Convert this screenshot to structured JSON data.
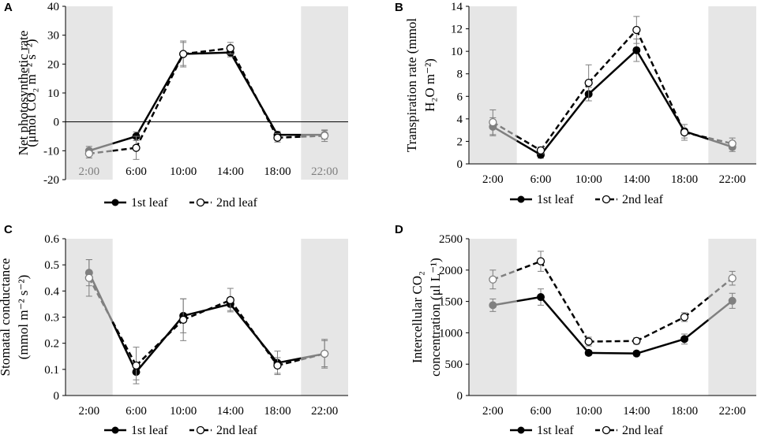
{
  "colors": {
    "night_shade": "#e6e6e6",
    "night_series": "#808080",
    "day_series": "#000000",
    "night_label": "#7f7f7f",
    "day_label": "#000000"
  },
  "chart_data": [
    {
      "type": "line",
      "panel": "A",
      "ylabel_lines": [
        "Net photosynthetic rate",
        "(μmol CO₂ m⁻² s⁻²)"
      ],
      "categories": [
        "2:00",
        "6:00",
        "10:00",
        "14:00",
        "18:00",
        "22:00"
      ],
      "ylim": [
        -20,
        40
      ],
      "yticks": [
        -20,
        -10,
        0,
        10,
        20,
        30,
        40
      ],
      "xlabels_on_zero_line": true,
      "night_categories": [
        0,
        5
      ],
      "series": [
        {
          "name": "1st leaf",
          "values": [
            -10,
            -5,
            23.5,
            24,
            -4.5,
            -4.5
          ],
          "errors": [
            1.5,
            1.5,
            4,
            1.5,
            1.2,
            1.5
          ]
        },
        {
          "name": "2nd leaf",
          "values": [
            -11,
            -9,
            23.5,
            25.5,
            -5.5,
            -4.8
          ],
          "errors": [
            1.5,
            4,
            4.5,
            2,
            1.5,
            2
          ]
        }
      ]
    },
    {
      "type": "line",
      "panel": "B",
      "ylabel_lines": [
        "Transpiration rate (mmol",
        "H₂O m⁻²)"
      ],
      "categories": [
        "2:00",
        "6:00",
        "10:00",
        "14:00",
        "18:00",
        "22:00"
      ],
      "ylim": [
        0,
        14
      ],
      "yticks": [
        0,
        2,
        4,
        6,
        8,
        10,
        12,
        14
      ],
      "night_categories": [
        0,
        5
      ],
      "series": [
        {
          "name": "1st leaf",
          "values": [
            3.3,
            0.8,
            6.2,
            10.1,
            2.9,
            1.5
          ],
          "errors": [
            0.8,
            0.3,
            0.6,
            1,
            0.6,
            0.4
          ]
        },
        {
          "name": "2nd leaf",
          "values": [
            3.7,
            1.2,
            7.2,
            11.9,
            2.8,
            1.8
          ],
          "errors": [
            1.1,
            0.3,
            1.6,
            1.2,
            0.7,
            0.5
          ]
        }
      ]
    },
    {
      "type": "line",
      "panel": "C",
      "ylabel_lines": [
        "Stomatal conductance",
        "(mmol m⁻² s⁻²)"
      ],
      "categories": [
        "2:00",
        "6:00",
        "10:00",
        "14:00",
        "18:00",
        "22:00"
      ],
      "ylim": [
        0,
        0.6
      ],
      "yticks": [
        0,
        0.1,
        0.2,
        0.3,
        0.4,
        0.5,
        0.6
      ],
      "night_categories": [
        0,
        5
      ],
      "series": [
        {
          "name": "1st leaf",
          "values": [
            0.47,
            0.09,
            0.305,
            0.35,
            0.125,
            0.16
          ],
          "errors": [
            0.05,
            0.03,
            0.065,
            0.025,
            0.045,
            0.05
          ]
        },
        {
          "name": "2nd leaf",
          "values": [
            0.45,
            0.115,
            0.29,
            0.365,
            0.115,
            0.16
          ],
          "errors": [
            0.07,
            0.07,
            0.08,
            0.045,
            0.03,
            0.055
          ]
        }
      ]
    },
    {
      "type": "line",
      "panel": "D",
      "ylabel_lines": [
        "Intercellular CO₂",
        "concentration (μl L⁻¹)"
      ],
      "categories": [
        "2:00",
        "6:00",
        "10:00",
        "14:00",
        "18:00",
        "22:00"
      ],
      "ylim": [
        0,
        2500
      ],
      "yticks": [
        0,
        500,
        1000,
        1500,
        2000,
        2500
      ],
      "night_categories": [
        0,
        5
      ],
      "series": [
        {
          "name": "1st leaf",
          "values": [
            1440,
            1570,
            680,
            670,
            900,
            1510
          ],
          "errors": [
            100,
            130,
            40,
            40,
            80,
            120
          ]
        },
        {
          "name": "2nd leaf",
          "values": [
            1850,
            2140,
            860,
            870,
            1250,
            1870
          ],
          "errors": [
            150,
            160,
            70,
            50,
            70,
            110
          ]
        }
      ]
    }
  ],
  "legend": {
    "first": "1st leaf",
    "second": "2nd leaf"
  }
}
